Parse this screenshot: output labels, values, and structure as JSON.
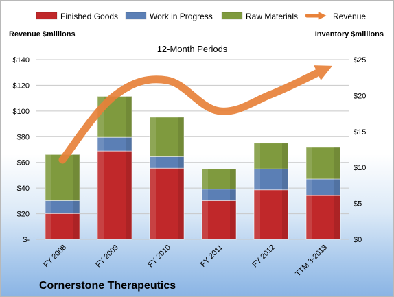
{
  "company": "Cornerstone Therapeutics",
  "colors": {
    "finished_goods": "#c0282a",
    "work_in_progress": "#5b7fb5",
    "raw_materials": "#7f9a3e",
    "revenue": "#e8823a"
  },
  "chart_data": {
    "type": "bar",
    "stacked": true,
    "title": "12-Month Periods",
    "categories": [
      "FY 2008",
      "FY 2009",
      "FY 2010",
      "FY 2011",
      "FY 2012",
      "TTM 3-2013"
    ],
    "series": [
      {
        "name": "Finished Goods",
        "axis": "right",
        "values": [
          3.6,
          12.3,
          9.9,
          5.4,
          6.9,
          6.1
        ]
      },
      {
        "name": "Work in Progress",
        "axis": "right",
        "values": [
          1.8,
          1.9,
          1.6,
          1.6,
          2.9,
          2.3
        ]
      },
      {
        "name": "Raw Materials",
        "axis": "right",
        "values": [
          6.4,
          5.7,
          5.5,
          2.8,
          3.6,
          4.4
        ]
      },
      {
        "name": "Revenue",
        "type": "line",
        "axis": "left",
        "smooth": true,
        "values": [
          62,
          112,
          124,
          100,
          113,
          132
        ]
      }
    ],
    "left_axis": {
      "label": "Revenue $millions",
      "ylim": [
        0,
        140
      ],
      "ticks": [
        0,
        20,
        40,
        60,
        80,
        100,
        120,
        140
      ],
      "tick_labels": [
        "$-",
        "$20",
        "$40",
        "$60",
        "$80",
        "$100",
        "$120",
        "$140"
      ]
    },
    "right_axis": {
      "label": "Inventory $millions",
      "ylim": [
        0,
        25
      ],
      "ticks": [
        0,
        5,
        10,
        15,
        20,
        25
      ],
      "tick_labels": [
        "$0",
        "$5",
        "$10",
        "$15",
        "$20",
        "$25"
      ]
    },
    "grid": true,
    "legend": {
      "position": "top",
      "entries": [
        "Finished Goods",
        "Work in Progress",
        "Raw Materials",
        "Revenue"
      ]
    }
  }
}
